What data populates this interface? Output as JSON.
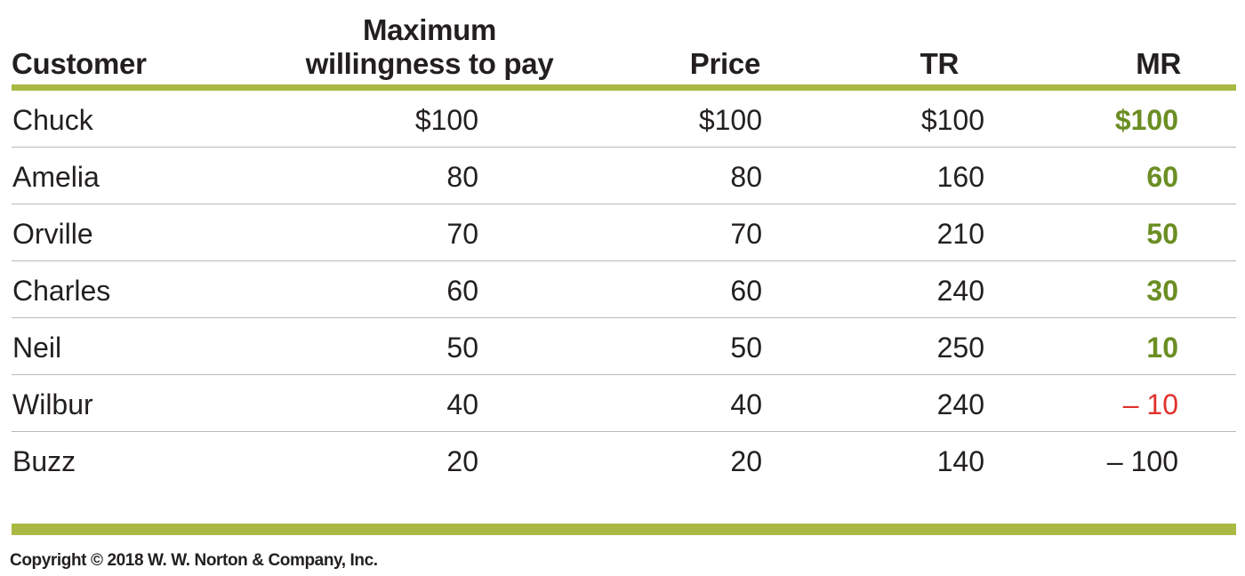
{
  "table": {
    "headers": {
      "customer": "Customer",
      "wtp_line1": "Maximum",
      "wtp_line2": "willingness to pay",
      "price": "Price",
      "tr": "TR",
      "mr": "MR"
    },
    "rows": [
      {
        "customer": "Chuck",
        "wtp": "$100",
        "price": "$100",
        "tr": "$100",
        "mr": "$100",
        "mr_style": "positive"
      },
      {
        "customer": "Amelia",
        "wtp": "80",
        "price": "80",
        "tr": "160",
        "mr": "60",
        "mr_style": "positive"
      },
      {
        "customer": "Orville",
        "wtp": "70",
        "price": "70",
        "tr": "210",
        "mr": "50",
        "mr_style": "positive"
      },
      {
        "customer": "Charles",
        "wtp": "60",
        "price": "60",
        "tr": "240",
        "mr": "30",
        "mr_style": "positive"
      },
      {
        "customer": "Neil",
        "wtp": "50",
        "price": "50",
        "tr": "250",
        "mr": "10",
        "mr_style": "positive"
      },
      {
        "customer": "Wilbur",
        "wtp": "40",
        "price": "40",
        "tr": "240",
        "mr": "– 10",
        "mr_style": "red"
      },
      {
        "customer": "Buzz",
        "wtp": "20",
        "price": "20",
        "tr": "140",
        "mr": "– 100",
        "mr_style": "neutral"
      }
    ]
  },
  "colors": {
    "rule": "#a9b944",
    "mr_positive": "#6b8e23",
    "mr_red": "#e0312d",
    "text": "#231f20"
  },
  "copyright": "Copyright © 2018 W. W. Norton & Company, Inc."
}
